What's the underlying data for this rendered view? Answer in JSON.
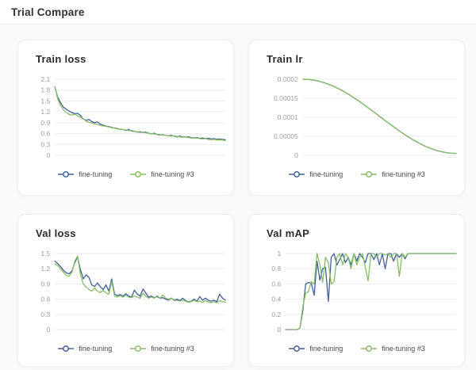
{
  "header": {
    "title": "Trial Compare"
  },
  "colors": {
    "series_blue": "#41619b",
    "series_green": "#85bf63",
    "grid": "#ededed",
    "tick_label": "#9aa1a9",
    "card_bg": "#ffffff",
    "page_bg": "#fafafa"
  },
  "chart_data": [
    {
      "type": "line",
      "title": "Train loss",
      "xlabel": "",
      "ylabel": "",
      "ylim": [
        0,
        2.1
      ],
      "yticks": [
        0,
        0.3,
        0.6,
        0.9,
        1.2,
        1.5,
        1.8,
        2.1
      ],
      "grid": true,
      "legend_position": "bottom",
      "series": [
        {
          "name": "fine-tuning",
          "color": "#41619b",
          "values": [
            1.88,
            1.6,
            1.45,
            1.33,
            1.27,
            1.22,
            1.18,
            1.15,
            1.16,
            1.1,
            1.0,
            0.97,
            0.99,
            0.93,
            0.9,
            0.92,
            0.86,
            0.83,
            0.81,
            0.79,
            0.77,
            0.75,
            0.74,
            0.72,
            0.71,
            0.69,
            0.71,
            0.67,
            0.66,
            0.64,
            0.65,
            0.63,
            0.64,
            0.61,
            0.59,
            0.61,
            0.57,
            0.56,
            0.57,
            0.55,
            0.54,
            0.55,
            0.53,
            0.51,
            0.53,
            0.51,
            0.5,
            0.51,
            0.49,
            0.48,
            0.49,
            0.47,
            0.48,
            0.46,
            0.47,
            0.45,
            0.46,
            0.44,
            0.45,
            0.44,
            0.43
          ]
        },
        {
          "name": "fine-tuning #3",
          "color": "#85bf63",
          "values": [
            1.9,
            1.55,
            1.38,
            1.26,
            1.18,
            1.13,
            1.11,
            1.14,
            1.09,
            1.05,
            1.01,
            0.94,
            0.91,
            0.89,
            0.87,
            0.85,
            0.83,
            0.81,
            0.8,
            0.78,
            0.76,
            0.75,
            0.73,
            0.72,
            0.71,
            0.7,
            0.68,
            0.69,
            0.66,
            0.65,
            0.63,
            0.64,
            0.62,
            0.61,
            0.6,
            0.59,
            0.58,
            0.57,
            0.56,
            0.55,
            0.54,
            0.53,
            0.54,
            0.52,
            0.51,
            0.5,
            0.51,
            0.49,
            0.48,
            0.47,
            0.48,
            0.46,
            0.45,
            0.46,
            0.44,
            0.43,
            0.44,
            0.42,
            0.43,
            0.42,
            0.41
          ]
        }
      ]
    },
    {
      "type": "line",
      "title": "Train lr",
      "xlabel": "",
      "ylabel": "",
      "ylim": [
        0,
        0.0002
      ],
      "yticks": [
        0,
        5e-05,
        0.0001,
        0.00015,
        0.0002
      ],
      "grid": true,
      "legend_position": "bottom",
      "series": [
        {
          "name": "fine-tuning",
          "color": "#41619b",
          "values": [
            0.0002,
            0.0001995,
            0.0001979,
            0.0001952,
            0.0001916,
            0.0001869,
            0.0001814,
            0.000175,
            0.0001677,
            0.0001598,
            0.0001513,
            0.0001422,
            0.0001326,
            0.0001228,
            0.0001127,
            0.0001025,
            9.23e-05,
            8.22e-05,
            7.24e-05,
            6.28e-05,
            5.38e-05,
            4.52e-05,
            3.73e-05,
            3e-05,
            2.36e-05,
            1.81e-05,
            1.34e-05,
            9.8e-06,
            7.1e-06,
            5.5e-06,
            5e-06
          ]
        },
        {
          "name": "fine-tuning #3",
          "color": "#85bf63",
          "values": [
            0.0002,
            0.0001995,
            0.0001979,
            0.0001952,
            0.0001916,
            0.0001869,
            0.0001814,
            0.000175,
            0.0001677,
            0.0001598,
            0.0001513,
            0.0001422,
            0.0001326,
            0.0001228,
            0.0001127,
            0.0001025,
            9.23e-05,
            8.22e-05,
            7.24e-05,
            6.28e-05,
            5.38e-05,
            4.52e-05,
            3.73e-05,
            3e-05,
            2.36e-05,
            1.81e-05,
            1.34e-05,
            9.8e-06,
            7.1e-06,
            5.5e-06,
            5e-06
          ]
        }
      ]
    },
    {
      "type": "line",
      "title": "Val loss",
      "xlabel": "",
      "ylabel": "",
      "ylim": [
        0,
        1.5
      ],
      "yticks": [
        0,
        0.3,
        0.6,
        0.9,
        1.2,
        1.5
      ],
      "grid": true,
      "legend_position": "bottom",
      "series": [
        {
          "name": "fine-tuning",
          "color": "#41619b",
          "values": [
            1.35,
            1.3,
            1.24,
            1.17,
            1.12,
            1.1,
            1.16,
            1.32,
            1.43,
            1.18,
            1.0,
            1.08,
            1.03,
            0.88,
            0.85,
            0.92,
            0.84,
            0.79,
            0.88,
            0.76,
            1.0,
            0.7,
            0.67,
            0.69,
            0.66,
            0.71,
            0.66,
            0.64,
            0.78,
            0.7,
            0.66,
            0.8,
            0.72,
            0.64,
            0.66,
            0.63,
            0.65,
            0.62,
            0.63,
            0.6,
            0.58,
            0.62,
            0.58,
            0.6,
            0.57,
            0.62,
            0.57,
            0.55,
            0.56,
            0.6,
            0.56,
            0.65,
            0.58,
            0.62,
            0.58,
            0.56,
            0.58,
            0.55,
            0.7,
            0.62,
            0.58
          ]
        },
        {
          "name": "fine-tuning #3",
          "color": "#85bf63",
          "values": [
            1.3,
            1.26,
            1.2,
            1.13,
            1.07,
            1.05,
            1.13,
            1.35,
            1.45,
            1.08,
            0.9,
            0.84,
            0.79,
            0.76,
            0.82,
            0.76,
            0.73,
            0.77,
            0.72,
            0.7,
            0.95,
            0.66,
            0.64,
            0.67,
            0.64,
            0.68,
            0.64,
            0.63,
            0.66,
            0.64,
            0.62,
            0.72,
            0.66,
            0.62,
            0.64,
            0.62,
            0.67,
            0.62,
            0.68,
            0.62,
            0.6,
            0.62,
            0.57,
            0.58,
            0.56,
            0.58,
            0.56,
            0.54,
            0.55,
            0.58,
            0.55,
            0.56,
            0.54,
            0.57,
            0.55,
            0.53,
            0.55,
            0.53,
            0.57,
            0.55,
            0.54
          ]
        }
      ]
    },
    {
      "type": "line",
      "title": "Val mAP",
      "xlabel": "",
      "ylabel": "",
      "ylim": [
        0,
        1
      ],
      "yticks": [
        0,
        0.2,
        0.4,
        0.6,
        0.8,
        1
      ],
      "grid": true,
      "legend_position": "bottom",
      "series": [
        {
          "name": "fine-tuning",
          "color": "#41619b",
          "values": [
            0,
            0,
            0,
            0,
            0,
            0.02,
            0.25,
            0.6,
            0.62,
            0.61,
            0.45,
            0.9,
            0.65,
            0.8,
            0.82,
            0.37,
            0.95,
            1,
            0.85,
            0.92,
            1,
            0.88,
            0.95,
            0.85,
            1,
            0.9,
            1,
            0.95,
            0.88,
            1,
            1,
            0.92,
            1,
            0.85,
            1,
            0.8,
            1,
            1,
            0.9,
            1,
            0.95,
            1,
            0.93,
            1,
            1,
            1,
            1,
            1,
            1,
            1,
            1,
            1,
            1,
            1,
            1,
            1,
            1,
            1,
            1,
            1,
            1
          ]
        },
        {
          "name": "fine-tuning #3",
          "color": "#85bf63",
          "values": [
            0,
            0,
            0,
            0,
            0,
            0.02,
            0.3,
            0.48,
            0.5,
            0.63,
            0.6,
            1,
            0.85,
            0.62,
            0.95,
            0.88,
            0.6,
            0.63,
            0.95,
            1,
            0.85,
            1,
            0.95,
            0.8,
            1,
            0.85,
            0.95,
            1,
            0.82,
            0.64,
            1,
            1,
            0.95,
            1,
            1,
            0.98,
            1,
            0.95,
            1,
            1,
            0.7,
            1,
            0.95,
            1,
            1,
            1,
            1,
            1,
            1,
            1,
            1,
            1,
            1,
            1,
            1,
            1,
            1,
            1,
            1,
            1,
            1
          ]
        }
      ]
    }
  ]
}
